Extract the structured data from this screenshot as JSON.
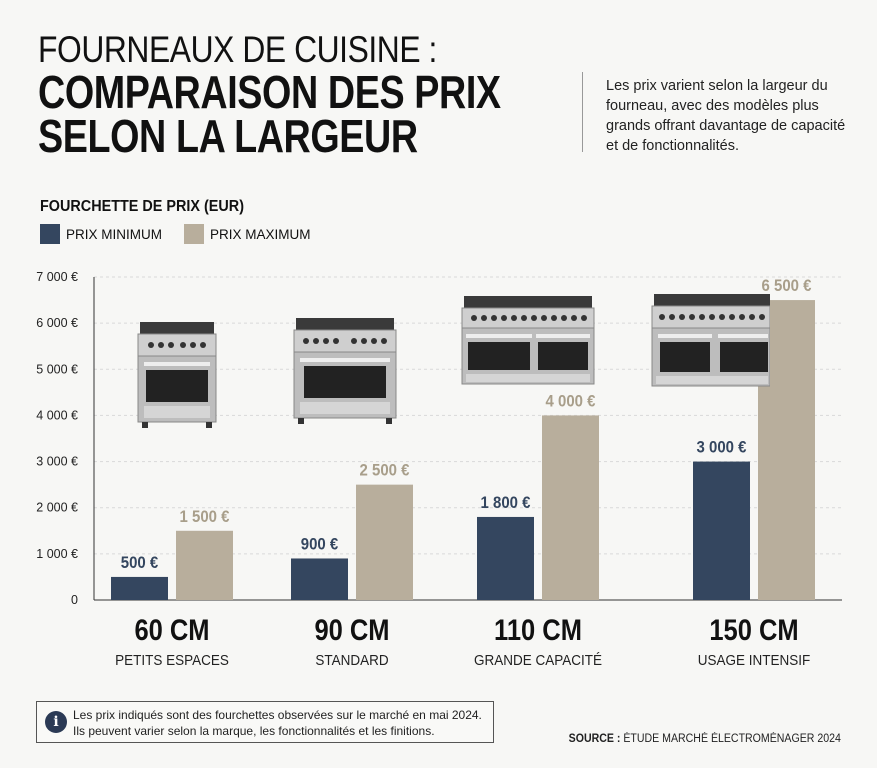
{
  "header": {
    "title_line1": "FOURNEAUX DE CUISINE :",
    "title_line2": "COMPARAISON DES PRIX",
    "title_line3": "SELON LA LARGEUR",
    "description": "Les prix varient selon la largeur du fourneau, avec des modèles plus grands offrant davantage de capacité et de fonctionnalités."
  },
  "chart_section": {
    "title": "FOURCHETTE DE PRIX (EUR)"
  },
  "legend": {
    "min_label": "PRIX MINIMUM",
    "max_label": "PRIX MAXIMUM"
  },
  "colors": {
    "min": "#34465f",
    "max": "#b8ae9c",
    "background": "#f7f7f5",
    "grid": "#d9d9d9"
  },
  "chart_data": {
    "type": "bar",
    "title": "FOURCHETTE DE PRIX (EUR)",
    "xlabel": "",
    "ylabel": "",
    "ylim": [
      0,
      7000
    ],
    "yticks": [
      0,
      1000,
      2000,
      3000,
      4000,
      5000,
      6000,
      7000
    ],
    "ytick_labels": [
      "0",
      "1 000 €",
      "2 000 €",
      "3 000 €",
      "4 000 €",
      "5 000 €",
      "6 000 €",
      "7 000 €"
    ],
    "grid": true,
    "legend_position": "top-left",
    "categories": [
      "60 CM",
      "90 CM",
      "110 CM",
      "150 CM"
    ],
    "category_subtitles": [
      "PETITS ESPACES",
      "STANDARD",
      "GRANDE CAPACITÉ",
      "USAGE INTENSIF"
    ],
    "series": [
      {
        "name": "PRIX MINIMUM",
        "values": [
          500,
          900,
          1800,
          3000
        ],
        "labels": [
          "500 €",
          "900 €",
          "1 800 €",
          "3 000 €"
        ]
      },
      {
        "name": "PRIX MAXIMUM",
        "values": [
          1500,
          2500,
          4000,
          6500
        ],
        "labels": [
          "1 500 €",
          "2 500 €",
          "4 000 €",
          "6 500 €"
        ]
      }
    ]
  },
  "images": [
    "stove-60cm-icon",
    "stove-90cm-icon",
    "stove-110cm-icon",
    "stove-150cm-icon"
  ],
  "footer": {
    "note_line1": "Les prix indiqués sont des fourchettes observées sur le marché en mai 2024.",
    "note_line2": "Ils peuvent varier selon la marque, les fonctionnalités et les finitions.",
    "info_icon": "i",
    "source_label": "SOURCE :",
    "source_text": "ÉTUDE MARCHÉ ÉLECTROMÉNAGER 2024"
  }
}
